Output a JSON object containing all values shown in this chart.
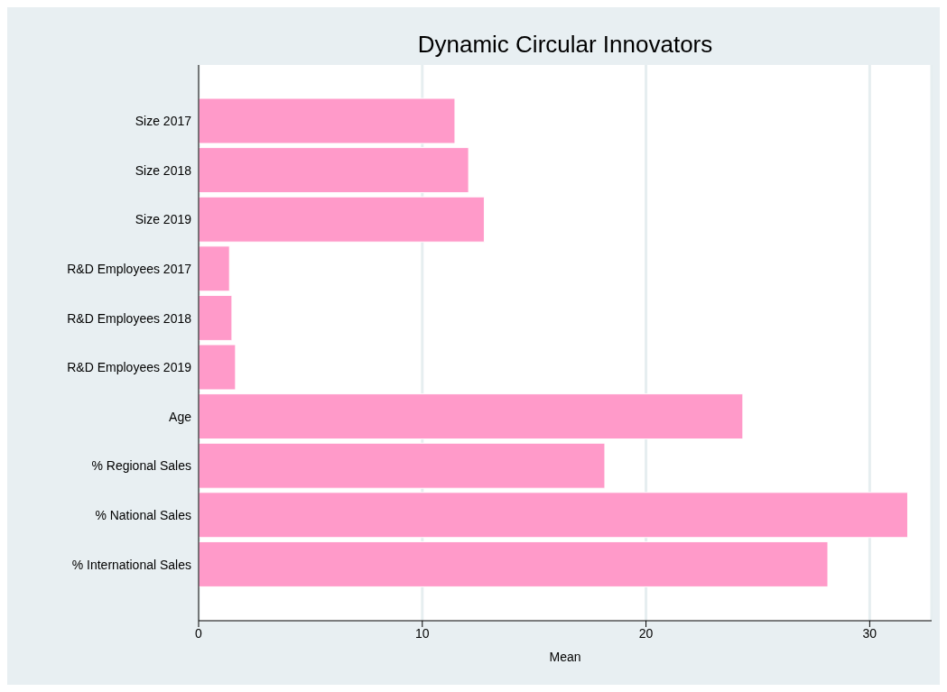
{
  "chart_data": {
    "type": "bar",
    "orientation": "horizontal",
    "title": "Dynamic Circular Innovators",
    "xlabel": "Mean",
    "categories": [
      "Size 2017",
      "Size 2018",
      "Size 2019",
      "R&D Employees 2017",
      "R&D Employees 2018",
      "R&D Employees 2019",
      "Age",
      "% Regional Sales",
      "% National Sales",
      "% International Sales"
    ],
    "values": [
      11.46,
      12.07,
      12.77,
      1.38,
      1.49,
      1.65,
      24.33,
      18.16,
      31.7,
      28.13
    ],
    "color": "#ff9ac9",
    "xlim": [
      0,
      32.77
    ],
    "xticks": [
      0,
      10,
      20,
      30
    ],
    "grid": "x"
  }
}
